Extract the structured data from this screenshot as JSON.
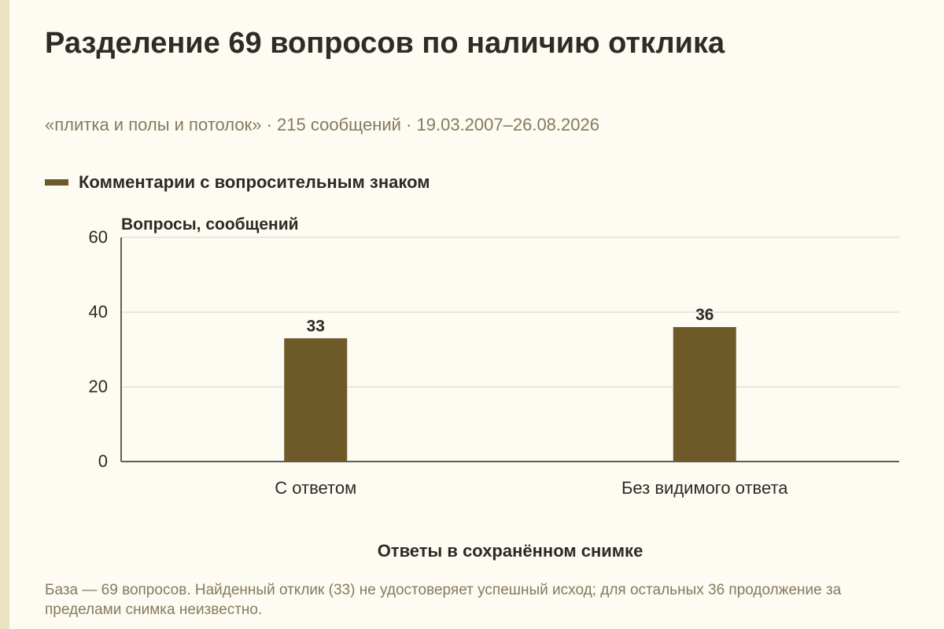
{
  "title": "Разделение 69 вопросов по наличию отклика",
  "subtitle": "«плитка и полы и потолок» · 215 сообщений · 19.03.2007–26.08.2026",
  "footnote": "База — 69 вопросов. Найденный отклик (33) не удостоверяет успешный исход; для остальных 36 продолжение за пределами снимка неизвестно.",
  "colors": {
    "bar": "#6e5a28",
    "grid": "#d8d4c8",
    "axis": "#2b2a24",
    "background": "#fdfbf2"
  },
  "chart_data": {
    "type": "bar",
    "categories": [
      "С ответом",
      "Без видимого ответа"
    ],
    "series": [
      {
        "name": "Комментарии с вопросительным знаком",
        "values": [
          33,
          36
        ]
      }
    ],
    "data_labels": [
      "33",
      "36"
    ],
    "ylim": [
      0,
      60
    ],
    "yticks": [
      0,
      20,
      40,
      60
    ],
    "ylabel": "Вопросы, сообщений",
    "xlabel": "Ответы в сохранённом снимке",
    "grid": true,
    "legend_position": "top-left"
  }
}
